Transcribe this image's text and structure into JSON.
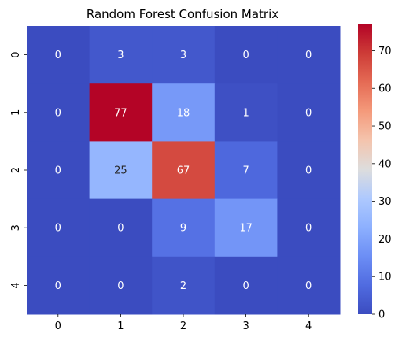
{
  "chart_data": {
    "type": "heatmap",
    "title": "Random Forest Confusion Matrix",
    "xlabel": "",
    "ylabel": "",
    "x_categories": [
      "0",
      "1",
      "2",
      "3",
      "4"
    ],
    "y_categories": [
      "0",
      "1",
      "2",
      "3",
      "4"
    ],
    "values": [
      [
        0,
        3,
        3,
        0,
        0
      ],
      [
        0,
        77,
        18,
        1,
        0
      ],
      [
        0,
        25,
        67,
        7,
        0
      ],
      [
        0,
        0,
        9,
        17,
        0
      ],
      [
        0,
        0,
        2,
        0,
        0
      ]
    ],
    "colormap": "coolwarm",
    "vmin": 0,
    "vmax": 77,
    "colorbar_ticks": [
      0,
      10,
      20,
      30,
      40,
      50,
      60,
      70
    ],
    "annot_text_color_light": "#ffffff",
    "annot_text_color_dark": "#262626"
  }
}
